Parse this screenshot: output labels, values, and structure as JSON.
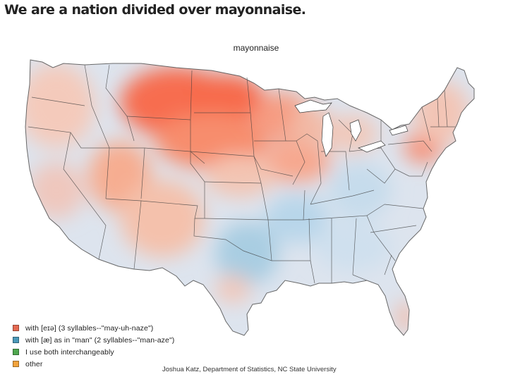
{
  "headline": "We are a nation divided over mayonnaise.",
  "map": {
    "title": "mayonnaise",
    "colors": {
      "land_base": "#dde4ee",
      "strong_orange": "#f76d4f",
      "mid_orange": "#f9a384",
      "light_orange": "#f6c7b5",
      "blue": "#c1d8ea",
      "deep_blue": "#9fcbe0",
      "border": "#3a3a3a"
    }
  },
  "legend": [
    {
      "label": "with [eɪə] (3 syllables--\"may-uh-naze\")",
      "color": "#e56a52"
    },
    {
      "label": "with [æ] as in \"man\" (2 syllables--\"man-aze\")",
      "color": "#4b98b8"
    },
    {
      "label": "I use both interchangeably",
      "color": "#4fa74f"
    },
    {
      "label": "other",
      "color": "#f2a33c"
    }
  ],
  "credit": "Joshua Katz, Department of Statistics, NC State University"
}
